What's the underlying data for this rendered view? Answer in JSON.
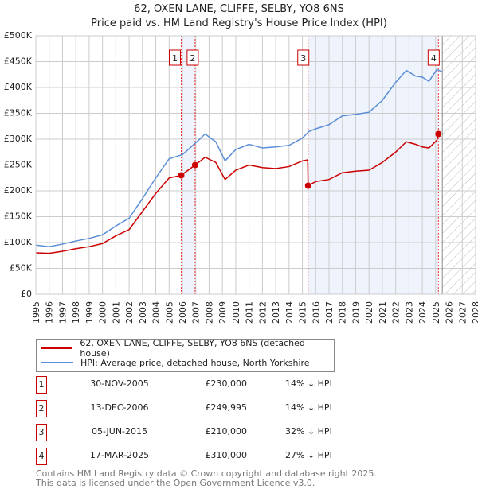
{
  "chart_data": {
    "type": "line",
    "title": "62, OXEN LANE, CLIFFE, SELBY, YO8 6NS",
    "subtitle": "Price paid vs. HM Land Registry's House Price Index (HPI)",
    "xlim": [
      1995,
      2028
    ],
    "ylim": [
      0,
      500000
    ],
    "x_ticks": [
      "1995",
      "1996",
      "1997",
      "1998",
      "1999",
      "2000",
      "2001",
      "2002",
      "2003",
      "2004",
      "2005",
      "2006",
      "2007",
      "2008",
      "2009",
      "2010",
      "2011",
      "2012",
      "2013",
      "2014",
      "2015",
      "2016",
      "2017",
      "2018",
      "2019",
      "2020",
      "2021",
      "2022",
      "2023",
      "2024",
      "2025",
      "2026",
      "2027",
      "2028"
    ],
    "y_ticks": [
      {
        "v": 0,
        "l": "£0"
      },
      {
        "v": 50000,
        "l": "£50K"
      },
      {
        "v": 100000,
        "l": "£100K"
      },
      {
        "v": 150000,
        "l": "£150K"
      },
      {
        "v": 200000,
        "l": "£200K"
      },
      {
        "v": 250000,
        "l": "£250K"
      },
      {
        "v": 300000,
        "l": "£300K"
      },
      {
        "v": 350000,
        "l": "£350K"
      },
      {
        "v": 400000,
        "l": "£400K"
      },
      {
        "v": 450000,
        "l": "£450K"
      },
      {
        "v": 500000,
        "l": "£500K"
      }
    ],
    "grid": true,
    "series": [
      {
        "name": "62, OXEN LANE, CLIFFE, SELBY, YO8 6NS (detached house)",
        "color": "#cc0000",
        "points": [
          [
            1995,
            80000
          ],
          [
            1996,
            79000
          ],
          [
            1997,
            83000
          ],
          [
            1998,
            88000
          ],
          [
            1999,
            92000
          ],
          [
            2000,
            98000
          ],
          [
            2001,
            113000
          ],
          [
            2002,
            125000
          ],
          [
            2003,
            160000
          ],
          [
            2004,
            195000
          ],
          [
            2005,
            225000
          ],
          [
            2005.91,
            230000
          ],
          [
            2006.95,
            249995
          ],
          [
            2007.7,
            265000
          ],
          [
            2008.5,
            255000
          ],
          [
            2009.2,
            222000
          ],
          [
            2010,
            240000
          ],
          [
            2011,
            250000
          ],
          [
            2012,
            245000
          ],
          [
            2013,
            243000
          ],
          [
            2014,
            247000
          ],
          [
            2015,
            258000
          ],
          [
            2015.4,
            260000
          ],
          [
            2015.43,
            210000
          ],
          [
            2016,
            218000
          ],
          [
            2017,
            222000
          ],
          [
            2018,
            235000
          ],
          [
            2019,
            238000
          ],
          [
            2020,
            240000
          ],
          [
            2021,
            255000
          ],
          [
            2022,
            275000
          ],
          [
            2022.8,
            295000
          ],
          [
            2023.5,
            290000
          ],
          [
            2024,
            285000
          ],
          [
            2024.5,
            283000
          ],
          [
            2025.1,
            298000
          ],
          [
            2025.21,
            310000
          ]
        ]
      },
      {
        "name": "HPI: Average price, detached house, North Yorkshire",
        "color": "#5b8ed6",
        "points": [
          [
            1995,
            95000
          ],
          [
            1996,
            92000
          ],
          [
            1997,
            97000
          ],
          [
            1998,
            103000
          ],
          [
            1999,
            108000
          ],
          [
            2000,
            115000
          ],
          [
            2001,
            132000
          ],
          [
            2002,
            147000
          ],
          [
            2003,
            185000
          ],
          [
            2004,
            225000
          ],
          [
            2005,
            262000
          ],
          [
            2006,
            270000
          ],
          [
            2007,
            293000
          ],
          [
            2007.7,
            310000
          ],
          [
            2008.5,
            295000
          ],
          [
            2009.2,
            258000
          ],
          [
            2010,
            280000
          ],
          [
            2011,
            290000
          ],
          [
            2012,
            283000
          ],
          [
            2013,
            285000
          ],
          [
            2014,
            288000
          ],
          [
            2015,
            302000
          ],
          [
            2015.5,
            315000
          ],
          [
            2016,
            320000
          ],
          [
            2017,
            328000
          ],
          [
            2018,
            345000
          ],
          [
            2019,
            348000
          ],
          [
            2020,
            352000
          ],
          [
            2021,
            375000
          ],
          [
            2022,
            410000
          ],
          [
            2022.8,
            433000
          ],
          [
            2023.5,
            422000
          ],
          [
            2024,
            420000
          ],
          [
            2024.5,
            412000
          ],
          [
            2025.1,
            435000
          ],
          [
            2025.5,
            430000
          ]
        ]
      }
    ],
    "sales": [
      {
        "id": "1",
        "x": 2005.91,
        "y": 230000,
        "date": "30-NOV-2005",
        "price": "£230,000",
        "hpi": "14% ↓ HPI"
      },
      {
        "id": "2",
        "x": 2006.95,
        "y": 249995,
        "date": "13-DEC-2006",
        "price": "£249,995",
        "hpi": "14% ↓ HPI"
      },
      {
        "id": "3",
        "x": 2015.43,
        "y": 210000,
        "date": "05-JUN-2015",
        "price": "£210,000",
        "hpi": "32% ↓ HPI"
      },
      {
        "id": "4",
        "x": 2025.21,
        "y": 310000,
        "date": "17-MAR-2025",
        "price": "£310,000",
        "hpi": "27% ↓ HPI"
      }
    ],
    "shaded": [
      [
        2005.91,
        2006.95
      ],
      [
        2015.43,
        2025.21
      ]
    ],
    "forecast_hatch_from": 2025.5,
    "legend_position": "below"
  },
  "footer": {
    "line1": "Contains HM Land Registry data © Crown copyright and database right 2025.",
    "line2": "This data is licensed under the Open Government Licence v3.0."
  }
}
